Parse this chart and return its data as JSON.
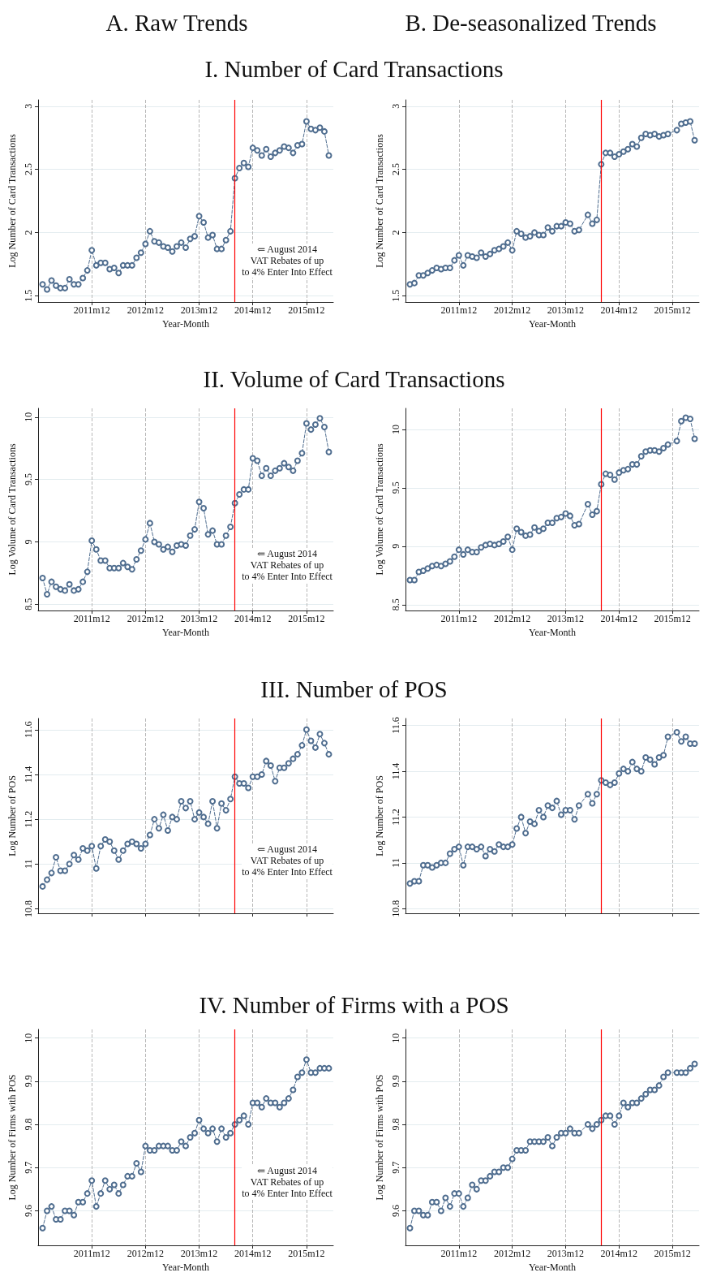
{
  "chart_data": [
    {
      "type": "line",
      "title": "I. Number of Card Transactions",
      "annotations": [
        "A. Raw Trends"
      ],
      "xlabel": "Year-Month",
      "ylabel": "Log Number of Card Transactions",
      "color": "#4f6d8f",
      "marker": "circle",
      "line_style": "dashed",
      "grid": true,
      "xlim": [
        "2010-12",
        "2016-06"
      ],
      "xticks": [
        {
          "value": "2011-12",
          "label": "2011m12"
        },
        {
          "value": "2012-12",
          "label": "2012m12"
        },
        {
          "value": "2013-12",
          "label": "2013m12"
        },
        {
          "value": "2014-12",
          "label": "2014m12"
        },
        {
          "value": "2015-12",
          "label": "2015m12"
        }
      ],
      "ylim": [
        1.45,
        3.05
      ],
      "yticks": [
        1.5,
        2,
        2.5,
        3
      ],
      "ref_lines": [
        {
          "axis": "x",
          "value": "2014-08",
          "color": "#ff0000",
          "label": "⇐ August 2014\nVAT Rebates of up\nto 4% Enter Into Effect"
        }
      ],
      "x": [
        "2011-01",
        "2011-02",
        "2011-03",
        "2011-04",
        "2011-05",
        "2011-06",
        "2011-07",
        "2011-08",
        "2011-09",
        "2011-10",
        "2011-11",
        "2011-12",
        "2012-01",
        "2012-02",
        "2012-03",
        "2012-04",
        "2012-05",
        "2012-06",
        "2012-07",
        "2012-08",
        "2012-09",
        "2012-10",
        "2012-11",
        "2012-12",
        "2013-01",
        "2013-02",
        "2013-03",
        "2013-04",
        "2013-05",
        "2013-06",
        "2013-07",
        "2013-08",
        "2013-09",
        "2013-10",
        "2013-11",
        "2013-12",
        "2014-01",
        "2014-02",
        "2014-03",
        "2014-04",
        "2014-05",
        "2014-06",
        "2014-07",
        "2014-08",
        "2014-09",
        "2014-10",
        "2014-11",
        "2014-12",
        "2015-01",
        "2015-02",
        "2015-03",
        "2015-04",
        "2015-05",
        "2015-06",
        "2015-07",
        "2015-08",
        "2015-09",
        "2015-10",
        "2015-11",
        "2015-12",
        "2016-01",
        "2016-02",
        "2016-03",
        "2016-04",
        "2016-05"
      ],
      "values": [
        1.59,
        1.55,
        1.62,
        1.58,
        1.56,
        1.56,
        1.63,
        1.59,
        1.59,
        1.64,
        1.7,
        1.86,
        1.74,
        1.76,
        1.76,
        1.71,
        1.72,
        1.68,
        1.74,
        1.74,
        1.74,
        1.8,
        1.84,
        1.91,
        2.01,
        1.93,
        1.92,
        1.89,
        1.88,
        1.85,
        1.89,
        1.92,
        1.88,
        1.95,
        1.97,
        2.13,
        2.08,
        1.96,
        1.98,
        1.87,
        1.87,
        1.94,
        2.01,
        2.43,
        2.51,
        2.55,
        2.52,
        2.67,
        2.65,
        2.61,
        2.66,
        2.6,
        2.63,
        2.65,
        2.68,
        2.67,
        2.63,
        2.69,
        2.7,
        2.88,
        2.82,
        2.81,
        2.83,
        2.8,
        2.61
      ]
    },
    {
      "type": "line",
      "annotations": [
        "B. De-seasonalized Trends"
      ],
      "xlabel": "Year-Month",
      "ylabel": "Log Number of Card Transactions",
      "color": "#4f6d8f",
      "marker": "circle",
      "line_style": "dashed",
      "grid": true,
      "xlim": [
        "2010-12",
        "2016-06"
      ],
      "xticks": [
        {
          "value": "2011-12",
          "label": "2011m12"
        },
        {
          "value": "2012-12",
          "label": "2012m12"
        },
        {
          "value": "2013-12",
          "label": "2013m12"
        },
        {
          "value": "2014-12",
          "label": "2014m12"
        },
        {
          "value": "2015-12",
          "label": "2015m12"
        }
      ],
      "ylim": [
        1.45,
        3.05
      ],
      "yticks": [
        1.5,
        2,
        2.5,
        3
      ],
      "ref_lines": [
        {
          "axis": "x",
          "value": "2014-08",
          "color": "#ff0000"
        }
      ],
      "x": [
        "2011-01",
        "2011-02",
        "2011-03",
        "2011-04",
        "2011-05",
        "2011-06",
        "2011-07",
        "2011-08",
        "2011-09",
        "2011-10",
        "2011-11",
        "2011-12",
        "2012-01",
        "2012-02",
        "2012-03",
        "2012-04",
        "2012-05",
        "2012-06",
        "2012-07",
        "2012-08",
        "2012-09",
        "2012-10",
        "2012-11",
        "2012-12",
        "2013-01",
        "2013-02",
        "2013-03",
        "2013-04",
        "2013-05",
        "2013-06",
        "2013-07",
        "2013-08",
        "2013-09",
        "2013-10",
        "2013-11",
        "2013-12",
        "2014-01",
        "2014-02",
        "2014-03",
        "2014-04",
        "2014-05",
        "2014-06",
        "2014-07",
        "2014-08",
        "2014-09",
        "2014-10",
        "2014-11",
        "2014-12",
        "2015-01",
        "2015-02",
        "2015-03",
        "2015-04",
        "2015-05",
        "2015-06",
        "2015-07",
        "2015-08",
        "2015-09",
        "2015-10",
        "2015-11",
        "2015-12",
        "2016-01",
        "2016-02",
        "2016-03",
        "2016-04",
        "2016-05"
      ],
      "values": [
        1.59,
        1.6,
        1.66,
        1.66,
        1.68,
        1.7,
        1.72,
        1.71,
        1.72,
        1.72,
        1.78,
        1.82,
        1.74,
        1.82,
        1.81,
        1.8,
        1.84,
        1.81,
        1.83,
        1.86,
        1.87,
        1.89,
        1.92,
        1.86,
        2.01,
        1.99,
        1.96,
        1.97,
        2.0,
        1.98,
        1.98,
        2.04,
        2.01,
        2.05,
        2.05,
        2.08,
        2.07,
        2.01,
        2.02,
        null,
        2.14,
        2.07,
        2.1,
        2.54,
        2.63,
        2.63,
        2.6,
        2.62,
        2.64,
        2.66,
        2.7,
        2.68,
        2.75,
        2.78,
        2.77,
        2.78,
        2.76,
        2.77,
        2.78,
        null,
        2.81,
        2.86,
        2.87,
        2.88,
        2.73
      ]
    },
    {
      "type": "line",
      "title": "II. Volume of Card Transactions",
      "xlabel": "Year-Month",
      "ylabel": "Log Volume of Card Transactions",
      "color": "#4f6d8f",
      "marker": "circle",
      "line_style": "dashed",
      "grid": true,
      "xlim": [
        "2010-12",
        "2016-06"
      ],
      "xticks": [
        {
          "value": "2011-12",
          "label": "2011m12"
        },
        {
          "value": "2012-12",
          "label": "2012m12"
        },
        {
          "value": "2013-12",
          "label": "2013m12"
        },
        {
          "value": "2014-12",
          "label": "2014m12"
        },
        {
          "value": "2015-12",
          "label": "2015m12"
        }
      ],
      "ylim": [
        8.45,
        10.07
      ],
      "yticks": [
        8.5,
        9,
        9.5,
        10
      ],
      "ref_lines": [
        {
          "axis": "x",
          "value": "2014-08",
          "color": "#ff0000",
          "label": "⇐ August 2014\nVAT Rebates of up\nto 4% Enter Into Effect"
        }
      ],
      "x": [
        "2011-01",
        "2011-02",
        "2011-03",
        "2011-04",
        "2011-05",
        "2011-06",
        "2011-07",
        "2011-08",
        "2011-09",
        "2011-10",
        "2011-11",
        "2011-12",
        "2012-01",
        "2012-02",
        "2012-03",
        "2012-04",
        "2012-05",
        "2012-06",
        "2012-07",
        "2012-08",
        "2012-09",
        "2012-10",
        "2012-11",
        "2012-12",
        "2013-01",
        "2013-02",
        "2013-03",
        "2013-04",
        "2013-05",
        "2013-06",
        "2013-07",
        "2013-08",
        "2013-09",
        "2013-10",
        "2013-11",
        "2013-12",
        "2014-01",
        "2014-02",
        "2014-03",
        "2014-04",
        "2014-05",
        "2014-06",
        "2014-07",
        "2014-08",
        "2014-09",
        "2014-10",
        "2014-11",
        "2014-12",
        "2015-01",
        "2015-02",
        "2015-03",
        "2015-04",
        "2015-05",
        "2015-06",
        "2015-07",
        "2015-08",
        "2015-09",
        "2015-10",
        "2015-11",
        "2015-12",
        "2016-01",
        "2016-02",
        "2016-03",
        "2016-04",
        "2016-05"
      ],
      "values": [
        8.71,
        8.58,
        8.68,
        8.64,
        8.62,
        8.61,
        8.66,
        8.61,
        8.62,
        8.68,
        8.76,
        9.01,
        8.94,
        8.85,
        8.85,
        8.79,
        8.79,
        8.79,
        8.83,
        8.8,
        8.78,
        8.86,
        8.93,
        9.02,
        9.15,
        9.0,
        8.98,
        8.94,
        8.96,
        8.92,
        8.97,
        8.98,
        8.97,
        9.05,
        9.1,
        9.32,
        9.27,
        9.06,
        9.09,
        8.98,
        8.98,
        9.05,
        9.12,
        9.31,
        9.38,
        9.42,
        9.42,
        9.67,
        9.65,
        9.53,
        9.59,
        9.53,
        9.57,
        9.59,
        9.63,
        9.6,
        9.57,
        9.65,
        9.71,
        9.95,
        9.9,
        9.94,
        9.99,
        9.92,
        9.72
      ]
    },
    {
      "type": "line",
      "xlabel": "Year-Month",
      "ylabel": "Log Volume of Card Transactions",
      "color": "#4f6d8f",
      "marker": "circle",
      "line_style": "dashed",
      "grid": true,
      "xlim": [
        "2010-12",
        "2016-06"
      ],
      "xticks": [
        {
          "value": "2011-12",
          "label": "2011m12"
        },
        {
          "value": "2012-12",
          "label": "2012m12"
        },
        {
          "value": "2013-12",
          "label": "2013m12"
        },
        {
          "value": "2014-12",
          "label": "2014m12"
        },
        {
          "value": "2015-12",
          "label": "2015m12"
        }
      ],
      "ylim": [
        8.45,
        10.18
      ],
      "yticks": [
        8.5,
        9,
        9.5,
        10
      ],
      "ref_lines": [
        {
          "axis": "x",
          "value": "2014-08",
          "color": "#ff0000"
        }
      ],
      "x": [
        "2011-01",
        "2011-02",
        "2011-03",
        "2011-04",
        "2011-05",
        "2011-06",
        "2011-07",
        "2011-08",
        "2011-09",
        "2011-10",
        "2011-11",
        "2011-12",
        "2012-01",
        "2012-02",
        "2012-03",
        "2012-04",
        "2012-05",
        "2012-06",
        "2012-07",
        "2012-08",
        "2012-09",
        "2012-10",
        "2012-11",
        "2012-12",
        "2013-01",
        "2013-02",
        "2013-03",
        "2013-04",
        "2013-05",
        "2013-06",
        "2013-07",
        "2013-08",
        "2013-09",
        "2013-10",
        "2013-11",
        "2013-12",
        "2014-01",
        "2014-02",
        "2014-03",
        "2014-04",
        "2014-05",
        "2014-06",
        "2014-07",
        "2014-08",
        "2014-09",
        "2014-10",
        "2014-11",
        "2014-12",
        "2015-01",
        "2015-02",
        "2015-03",
        "2015-04",
        "2015-05",
        "2015-06",
        "2015-07",
        "2015-08",
        "2015-09",
        "2015-10",
        "2015-11",
        "2015-12",
        "2016-01",
        "2016-02",
        "2016-03",
        "2016-04",
        "2016-05"
      ],
      "values": [
        8.71,
        8.71,
        8.78,
        8.79,
        8.81,
        8.83,
        8.84,
        8.83,
        8.85,
        8.87,
        8.91,
        8.97,
        8.93,
        8.97,
        8.95,
        8.95,
        8.99,
        9.01,
        9.02,
        9.01,
        9.02,
        9.04,
        9.08,
        8.97,
        9.15,
        9.12,
        9.09,
        9.1,
        9.16,
        9.13,
        9.15,
        9.2,
        9.2,
        9.24,
        9.25,
        9.28,
        9.26,
        9.18,
        9.19,
        null,
        9.36,
        9.27,
        9.3,
        9.53,
        9.62,
        9.61,
        9.57,
        9.63,
        9.65,
        9.66,
        9.7,
        9.7,
        9.77,
        9.81,
        9.82,
        9.82,
        9.81,
        9.84,
        9.87,
        null,
        9.9,
        10.07,
        10.1,
        10.09,
        9.92
      ]
    },
    {
      "type": "line",
      "title": "III. Number of POS",
      "ylabel": "Log Number of POS",
      "color": "#4f6d8f",
      "marker": "circle",
      "line_style": "dashed",
      "grid": true,
      "tick_labels": "y",
      "xlim": [
        "2010-12",
        "2016-06"
      ],
      "xticks": [
        {
          "value": "2011-12",
          "label": null
        },
        {
          "value": "2012-12",
          "label": null
        },
        {
          "value": "2013-12",
          "label": null
        },
        {
          "value": "2014-12",
          "label": null
        },
        {
          "value": "2015-12",
          "label": null
        }
      ],
      "ylim": [
        10.78,
        11.65
      ],
      "yticks": [
        10.8,
        11,
        11.2,
        11.4,
        11.6
      ],
      "ref_lines": [
        {
          "axis": "x",
          "value": "2014-08",
          "color": "#ff0000",
          "label": "⇐ August 2014\nVAT Rebates of up\nto 4% Enter Into Effect"
        }
      ],
      "x": [
        "2011-01",
        "2011-02",
        "2011-03",
        "2011-04",
        "2011-05",
        "2011-06",
        "2011-07",
        "2011-08",
        "2011-09",
        "2011-10",
        "2011-11",
        "2011-12",
        "2012-01",
        "2012-02",
        "2012-03",
        "2012-04",
        "2012-05",
        "2012-06",
        "2012-07",
        "2012-08",
        "2012-09",
        "2012-10",
        "2012-11",
        "2012-12",
        "2013-01",
        "2013-02",
        "2013-03",
        "2013-04",
        "2013-05",
        "2013-06",
        "2013-07",
        "2013-08",
        "2013-09",
        "2013-10",
        "2013-11",
        "2013-12",
        "2014-01",
        "2014-02",
        "2014-03",
        "2014-04",
        "2014-05",
        "2014-06",
        "2014-07",
        "2014-08",
        "2014-09",
        "2014-10",
        "2014-11",
        "2014-12",
        "2015-01",
        "2015-02",
        "2015-03",
        "2015-04",
        "2015-05",
        "2015-06",
        "2015-07",
        "2015-08",
        "2015-09",
        "2015-10",
        "2015-11",
        "2015-12",
        "2016-01",
        "2016-02",
        "2016-03",
        "2016-04",
        "2016-05"
      ],
      "values": [
        10.9,
        10.93,
        10.96,
        11.03,
        10.97,
        10.97,
        11.0,
        11.04,
        11.02,
        11.07,
        11.06,
        11.08,
        10.98,
        11.08,
        11.11,
        11.1,
        11.06,
        11.02,
        11.06,
        11.09,
        11.1,
        11.09,
        11.07,
        11.09,
        11.13,
        11.2,
        11.16,
        11.22,
        11.15,
        11.21,
        11.2,
        11.28,
        11.25,
        11.28,
        11.2,
        11.23,
        11.21,
        11.18,
        11.28,
        11.16,
        11.27,
        11.24,
        11.29,
        11.39,
        11.36,
        11.36,
        11.34,
        11.39,
        11.39,
        11.4,
        11.46,
        11.44,
        11.37,
        11.43,
        11.43,
        11.45,
        11.47,
        11.49,
        11.53,
        11.6,
        11.55,
        11.52,
        11.58,
        11.54,
        11.49
      ]
    },
    {
      "type": "line",
      "ylabel": "Log Number of POS",
      "color": "#4f6d8f",
      "marker": "circle",
      "line_style": "dashed",
      "grid": true,
      "tick_labels": "y",
      "xlim": [
        "2010-12",
        "2016-06"
      ],
      "xticks": [
        {
          "value": "2011-12",
          "label": null
        },
        {
          "value": "2012-12",
          "label": null
        },
        {
          "value": "2013-12",
          "label": null
        },
        {
          "value": "2014-12",
          "label": null
        },
        {
          "value": "2015-12",
          "label": null
        }
      ],
      "ylim": [
        10.78,
        11.63
      ],
      "yticks": [
        10.8,
        11,
        11.2,
        11.4,
        11.6
      ],
      "ref_lines": [
        {
          "axis": "x",
          "value": "2014-08",
          "color": "#ff0000"
        }
      ],
      "x": [
        "2011-01",
        "2011-02",
        "2011-03",
        "2011-04",
        "2011-05",
        "2011-06",
        "2011-07",
        "2011-08",
        "2011-09",
        "2011-10",
        "2011-11",
        "2011-12",
        "2012-01",
        "2012-02",
        "2012-03",
        "2012-04",
        "2012-05",
        "2012-06",
        "2012-07",
        "2012-08",
        "2012-09",
        "2012-10",
        "2012-11",
        "2012-12",
        "2013-01",
        "2013-02",
        "2013-03",
        "2013-04",
        "2013-05",
        "2013-06",
        "2013-07",
        "2013-08",
        "2013-09",
        "2013-10",
        "2013-11",
        "2013-12",
        "2014-01",
        "2014-02",
        "2014-03",
        "2014-04",
        "2014-05",
        "2014-06",
        "2014-07",
        "2014-08",
        "2014-09",
        "2014-10",
        "2014-11",
        "2014-12",
        "2015-01",
        "2015-02",
        "2015-03",
        "2015-04",
        "2015-05",
        "2015-06",
        "2015-07",
        "2015-08",
        "2015-09",
        "2015-10",
        "2015-11",
        "2015-12",
        "2016-01",
        "2016-02",
        "2016-03",
        "2016-04",
        "2016-05"
      ],
      "values": [
        10.91,
        10.92,
        10.92,
        10.99,
        10.99,
        10.98,
        10.99,
        11.0,
        11.0,
        11.04,
        11.06,
        11.07,
        10.99,
        11.07,
        11.07,
        11.06,
        11.07,
        11.03,
        11.06,
        11.05,
        11.08,
        11.07,
        11.07,
        11.08,
        11.15,
        11.2,
        11.13,
        11.18,
        11.17,
        11.23,
        11.2,
        11.25,
        11.24,
        11.27,
        11.21,
        11.23,
        11.23,
        11.19,
        11.25,
        null,
        11.3,
        11.26,
        11.3,
        11.36,
        11.35,
        11.34,
        11.35,
        11.39,
        11.41,
        11.4,
        11.44,
        11.41,
        11.4,
        11.46,
        11.45,
        11.43,
        11.46,
        11.47,
        11.55,
        null,
        11.57,
        11.53,
        11.55,
        11.52,
        11.52
      ]
    },
    {
      "type": "line",
      "title": "IV. Number of Firms with a POS",
      "xlabel": "Year-Month",
      "ylabel": "Log Number of Firms with POS",
      "color": "#4f6d8f",
      "marker": "circle",
      "line_style": "dashed",
      "grid": true,
      "xlim": [
        "2010-12",
        "2016-06"
      ],
      "xticks": [
        {
          "value": "2011-12",
          "label": "2011m12"
        },
        {
          "value": "2012-12",
          "label": "2012m12"
        },
        {
          "value": "2013-12",
          "label": "2013m12"
        },
        {
          "value": "2014-12",
          "label": "2014m12"
        },
        {
          "value": "2015-12",
          "label": "2015m12"
        }
      ],
      "ylim": [
        9.52,
        10.02
      ],
      "yticks": [
        9.6,
        9.7,
        9.8,
        9.9,
        10
      ],
      "ref_lines": [
        {
          "axis": "x",
          "value": "2014-08",
          "color": "#ff0000",
          "label": "⇐ August 2014\nVAT Rebates of up\nto 4% Enter Into Effect"
        }
      ],
      "x": [
        "2011-01",
        "2011-02",
        "2011-03",
        "2011-04",
        "2011-05",
        "2011-06",
        "2011-07",
        "2011-08",
        "2011-09",
        "2011-10",
        "2011-11",
        "2011-12",
        "2012-01",
        "2012-02",
        "2012-03",
        "2012-04",
        "2012-05",
        "2012-06",
        "2012-07",
        "2012-08",
        "2012-09",
        "2012-10",
        "2012-11",
        "2012-12",
        "2013-01",
        "2013-02",
        "2013-03",
        "2013-04",
        "2013-05",
        "2013-06",
        "2013-07",
        "2013-08",
        "2013-09",
        "2013-10",
        "2013-11",
        "2013-12",
        "2014-01",
        "2014-02",
        "2014-03",
        "2014-04",
        "2014-05",
        "2014-06",
        "2014-07",
        "2014-08",
        "2014-09",
        "2014-10",
        "2014-11",
        "2014-12",
        "2015-01",
        "2015-02",
        "2015-03",
        "2015-04",
        "2015-05",
        "2015-06",
        "2015-07",
        "2015-08",
        "2015-09",
        "2015-10",
        "2015-11",
        "2015-12",
        "2016-01",
        "2016-02",
        "2016-03",
        "2016-04",
        "2016-05"
      ],
      "values": [
        9.56,
        9.6,
        9.61,
        9.58,
        9.58,
        9.6,
        9.6,
        9.59,
        9.62,
        9.62,
        9.64,
        9.67,
        9.61,
        9.64,
        9.67,
        9.65,
        9.66,
        9.64,
        9.66,
        9.68,
        9.68,
        9.71,
        9.69,
        9.75,
        9.74,
        9.74,
        9.75,
        9.75,
        9.75,
        9.74,
        9.74,
        9.76,
        9.75,
        9.77,
        9.78,
        9.81,
        9.79,
        9.78,
        9.79,
        9.76,
        9.79,
        9.77,
        9.78,
        9.8,
        9.81,
        9.82,
        9.8,
        9.85,
        9.85,
        9.84,
        9.86,
        9.85,
        9.85,
        9.84,
        9.85,
        9.86,
        9.88,
        9.91,
        9.92,
        9.95,
        9.92,
        9.92,
        9.93,
        9.93,
        9.93
      ]
    },
    {
      "type": "line",
      "xlabel": "Year-Month",
      "ylabel": "Log Number of Firms with POS",
      "color": "#4f6d8f",
      "marker": "circle",
      "line_style": "dashed",
      "grid": true,
      "xlim": [
        "2010-12",
        "2016-06"
      ],
      "xticks": [
        {
          "value": "2011-12",
          "label": "2011m12"
        },
        {
          "value": "2012-12",
          "label": "2012m12"
        },
        {
          "value": "2013-12",
          "label": "2013m12"
        },
        {
          "value": "2014-12",
          "label": "2014m12"
        },
        {
          "value": "2015-12",
          "label": "2015m12"
        }
      ],
      "ylim": [
        9.52,
        10.02
      ],
      "yticks": [
        9.6,
        9.7,
        9.8,
        9.9,
        10
      ],
      "ref_lines": [
        {
          "axis": "x",
          "value": "2014-08",
          "color": "#ff0000"
        }
      ],
      "x": [
        "2011-01",
        "2011-02",
        "2011-03",
        "2011-04",
        "2011-05",
        "2011-06",
        "2011-07",
        "2011-08",
        "2011-09",
        "2011-10",
        "2011-11",
        "2011-12",
        "2012-01",
        "2012-02",
        "2012-03",
        "2012-04",
        "2012-05",
        "2012-06",
        "2012-07",
        "2012-08",
        "2012-09",
        "2012-10",
        "2012-11",
        "2012-12",
        "2013-01",
        "2013-02",
        "2013-03",
        "2013-04",
        "2013-05",
        "2013-06",
        "2013-07",
        "2013-08",
        "2013-09",
        "2013-10",
        "2013-11",
        "2013-12",
        "2014-01",
        "2014-02",
        "2014-03",
        "2014-04",
        "2014-05",
        "2014-06",
        "2014-07",
        "2014-08",
        "2014-09",
        "2014-10",
        "2014-11",
        "2014-12",
        "2015-01",
        "2015-02",
        "2015-03",
        "2015-04",
        "2015-05",
        "2015-06",
        "2015-07",
        "2015-08",
        "2015-09",
        "2015-10",
        "2015-11",
        "2015-12",
        "2016-01",
        "2016-02",
        "2016-03",
        "2016-04",
        "2016-05"
      ],
      "values": [
        9.56,
        9.6,
        9.6,
        9.59,
        9.59,
        9.62,
        9.62,
        9.6,
        9.63,
        9.61,
        9.64,
        9.64,
        9.61,
        9.63,
        9.66,
        9.65,
        9.67,
        9.67,
        9.68,
        9.69,
        9.69,
        9.7,
        9.7,
        9.72,
        9.74,
        9.74,
        9.74,
        9.76,
        9.76,
        9.76,
        9.76,
        9.77,
        9.75,
        9.77,
        9.78,
        9.78,
        9.79,
        9.78,
        9.78,
        null,
        9.8,
        9.79,
        9.8,
        9.81,
        9.82,
        9.82,
        9.8,
        9.82,
        9.85,
        9.84,
        9.85,
        9.85,
        9.86,
        9.87,
        9.88,
        9.88,
        9.89,
        9.91,
        9.92,
        null,
        9.92,
        9.92,
        9.92,
        9.93,
        9.94
      ]
    }
  ]
}
